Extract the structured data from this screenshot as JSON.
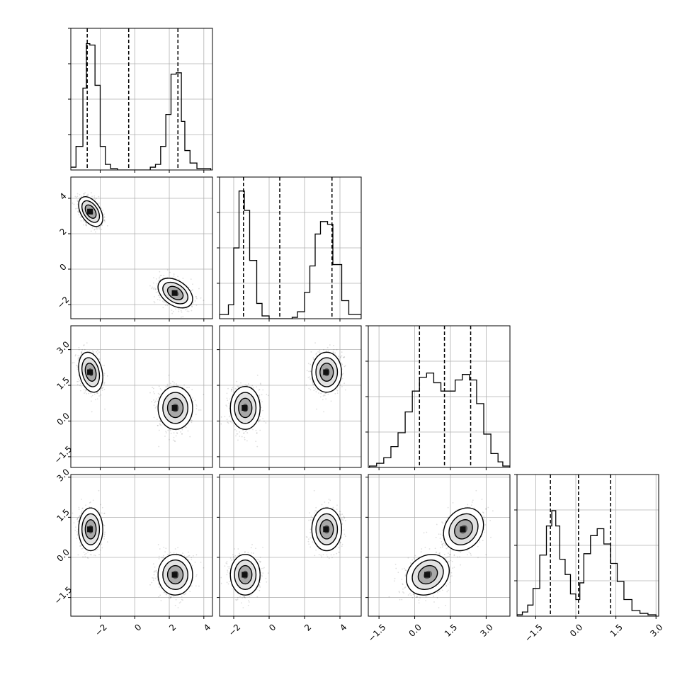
{
  "chart_data": {
    "type": "corner",
    "title": "",
    "parameters": 4,
    "quantile_lines": "dashed, three per diagonal histogram",
    "grid": true,
    "axes": [
      {
        "name": "",
        "lim": [
          -3.7,
          4.5
        ],
        "ticks": [
          -2,
          0,
          2,
          4
        ],
        "tick_labels": [
          "−2",
          "0",
          "2",
          "4"
        ]
      },
      {
        "name": "",
        "lim": [
          -2.8,
          5.2
        ],
        "ticks": [
          -2,
          0,
          2,
          4
        ],
        "tick_labels": [
          "−2",
          "0",
          "2",
          "4"
        ]
      },
      {
        "name": "",
        "lim": [
          -1.95,
          4.0
        ],
        "ticks": [
          -1.5,
          0.0,
          1.5,
          3.0
        ],
        "tick_labels": [
          "−1.5",
          "0.0",
          "1.5",
          "3.0"
        ]
      },
      {
        "name": "",
        "lim": [
          -2.2,
          3.1
        ],
        "ticks": [
          -1.5,
          0.0,
          1.5,
          3.0
        ],
        "tick_labels": [
          "−1.5",
          "0.0",
          "1.5",
          "3.0"
        ]
      }
    ],
    "histograms": [
      {
        "param": 0,
        "bin_edges": [
          -3.8,
          -3.4,
          -3.0,
          -2.8,
          -2.6,
          -2.3,
          -2.0,
          -1.7,
          -1.4,
          -1.0,
          -0.5,
          0.5,
          0.9,
          1.2,
          1.5,
          1.8,
          2.1,
          2.4,
          2.7,
          2.9,
          3.2,
          3.6,
          4.0,
          4.4
        ],
        "counts": [
          0.02,
          0.17,
          0.59,
          0.91,
          0.9,
          0.61,
          0.17,
          0.04,
          0.01,
          0,
          0,
          0,
          0.02,
          0.04,
          0.17,
          0.4,
          0.69,
          0.7,
          0.35,
          0.14,
          0.05,
          0.01,
          0.01
        ],
        "quantiles": [
          -2.75,
          -0.35,
          2.5
        ]
      },
      {
        "param": 1,
        "bin_edges": [
          -2.8,
          -2.3,
          -2.0,
          -1.7,
          -1.4,
          -1.1,
          -0.7,
          -0.4,
          0.0,
          0.3,
          1.3,
          1.6,
          2.0,
          2.3,
          2.6,
          2.9,
          3.3,
          3.6,
          4.1,
          4.5,
          5.2
        ],
        "counts": [
          0.03,
          0.1,
          0.51,
          0.92,
          0.78,
          0.42,
          0.11,
          0.02,
          0,
          0,
          0.01,
          0.05,
          0.19,
          0.38,
          0.61,
          0.7,
          0.68,
          0.39,
          0.13,
          0.03
        ],
        "quantiles": [
          -1.45,
          0.6,
          3.55
        ]
      },
      {
        "param": 2,
        "bin_edges": [
          -1.9,
          -1.6,
          -1.3,
          -1.0,
          -0.7,
          -0.4,
          -0.1,
          0.2,
          0.5,
          0.8,
          1.1,
          1.4,
          1.7,
          2.0,
          2.3,
          2.6,
          2.9,
          3.2,
          3.5,
          3.7,
          4.0
        ],
        "counts": [
          0.01,
          0.03,
          0.07,
          0.15,
          0.25,
          0.4,
          0.55,
          0.65,
          0.68,
          0.61,
          0.55,
          0.55,
          0.63,
          0.67,
          0.63,
          0.46,
          0.24,
          0.1,
          0.04,
          0.01
        ],
        "quantiles": [
          0.2,
          1.25,
          2.35
        ]
      },
      {
        "param": 3,
        "bin_edges": [
          -2.2,
          -2.0,
          -1.8,
          -1.6,
          -1.35,
          -1.1,
          -0.9,
          -0.75,
          -0.6,
          -0.4,
          -0.2,
          0.0,
          0.15,
          0.3,
          0.55,
          0.8,
          1.05,
          1.3,
          1.55,
          1.8,
          2.1,
          2.4,
          2.7,
          3.0
        ],
        "counts": [
          0.01,
          0.03,
          0.08,
          0.2,
          0.44,
          0.65,
          0.76,
          0.65,
          0.41,
          0.3,
          0.16,
          0.12,
          0.24,
          0.45,
          0.58,
          0.63,
          0.52,
          0.38,
          0.25,
          0.12,
          0.04,
          0.02,
          0.01
        ],
        "quantiles": [
          -0.95,
          0.1,
          1.3
        ]
      }
    ],
    "clusters": [
      {
        "mean": [
          -2.55,
          3.25,
          2.05,
          1.05
        ],
        "sd": [
          0.35,
          0.42,
          0.42,
          0.4
        ],
        "corr": {
          "0-1": -0.45,
          "0-2": -0.25,
          "0-3": 0,
          "1-2": 0,
          "1-3": 0,
          "2-3": 0.2
        }
      },
      {
        "mean": [
          2.35,
          -1.35,
          0.55,
          -0.65
        ],
        "sd": [
          0.5,
          0.42,
          0.45,
          0.38
        ],
        "corr": {
          "0-1": -0.4,
          "0-2": 0,
          "0-3": 0,
          "1-2": 0,
          "1-3": 0,
          "2-3": 0.2
        }
      }
    ]
  }
}
